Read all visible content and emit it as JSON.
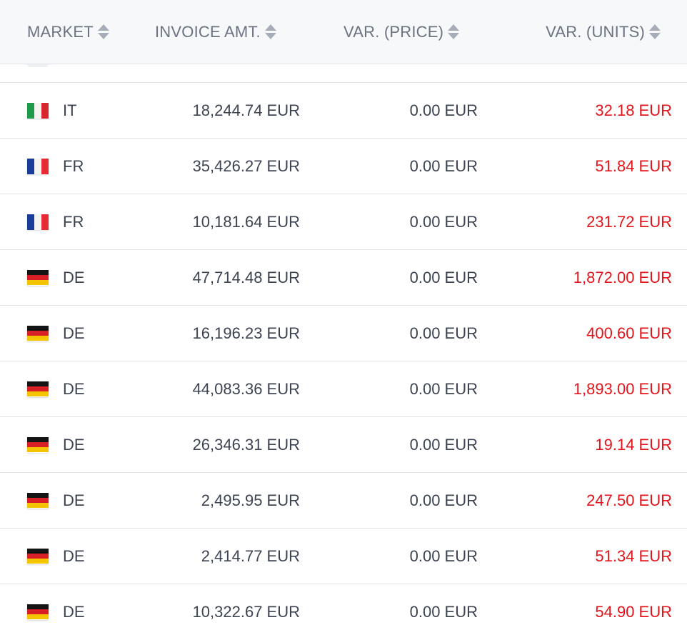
{
  "table": {
    "headers": {
      "market": "MARKET",
      "invoice": "INVOICE AMT.",
      "price": "VAR. (PRICE)",
      "units": "VAR. (UNITS)"
    },
    "colors": {
      "negative": "#e5141b",
      "text": "#3d4451",
      "header_text": "#6b7382"
    },
    "rows": [
      {
        "flag": "it-flag-icon",
        "market": "IT",
        "invoice": "18,244.74 EUR",
        "price": "0.00 EUR",
        "units": "32.18 EUR"
      },
      {
        "flag": "fr-flag-icon",
        "market": "FR",
        "invoice": "35,426.27 EUR",
        "price": "0.00 EUR",
        "units": "51.84 EUR"
      },
      {
        "flag": "fr-flag-icon",
        "market": "FR",
        "invoice": "10,181.64 EUR",
        "price": "0.00 EUR",
        "units": "231.72 EUR"
      },
      {
        "flag": "de-flag-icon",
        "market": "DE",
        "invoice": "47,714.48 EUR",
        "price": "0.00 EUR",
        "units": "1,872.00 EUR"
      },
      {
        "flag": "de-flag-icon",
        "market": "DE",
        "invoice": "16,196.23 EUR",
        "price": "0.00 EUR",
        "units": "400.60 EUR"
      },
      {
        "flag": "de-flag-icon",
        "market": "DE",
        "invoice": "44,083.36 EUR",
        "price": "0.00 EUR",
        "units": "1,893.00 EUR"
      },
      {
        "flag": "de-flag-icon",
        "market": "DE",
        "invoice": "26,346.31 EUR",
        "price": "0.00 EUR",
        "units": "19.14 EUR"
      },
      {
        "flag": "de-flag-icon",
        "market": "DE",
        "invoice": "2,495.95 EUR",
        "price": "0.00 EUR",
        "units": "247.50 EUR"
      },
      {
        "flag": "de-flag-icon",
        "market": "DE",
        "invoice": "2,414.77 EUR",
        "price": "0.00 EUR",
        "units": "51.34 EUR"
      },
      {
        "flag": "de-flag-icon",
        "market": "DE",
        "invoice": "10,322.67 EUR",
        "price": "0.00 EUR",
        "units": "54.90 EUR"
      }
    ]
  }
}
